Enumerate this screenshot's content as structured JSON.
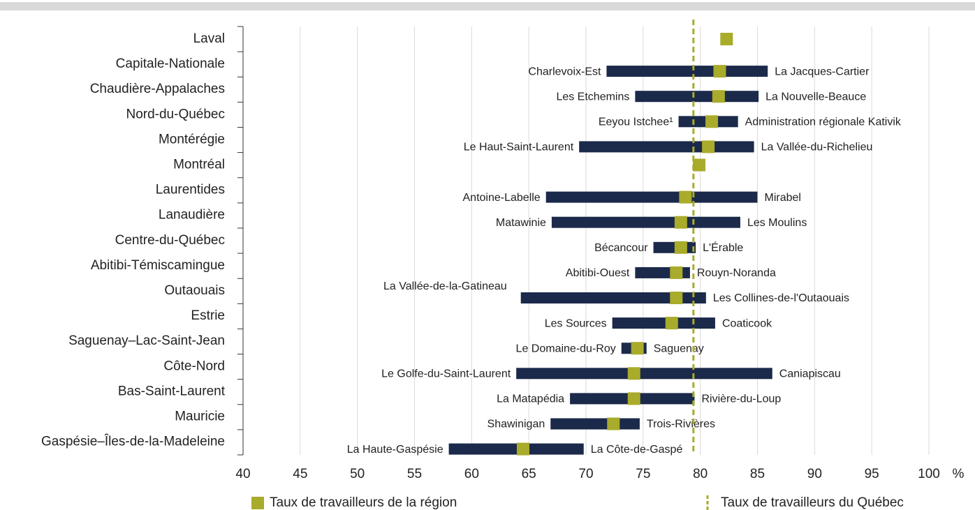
{
  "chart_data": {
    "type": "range",
    "categories": [
      "Laval",
      "Capitale-Nationale",
      "Chaudière-Appalaches",
      "Nord-du-Québec",
      "Montérégie",
      "Montréal",
      "Laurentides",
      "Lanaudière",
      "Centre-du-Québec",
      "Abitibi-Témiscamingue",
      "Outaouais",
      "Estrie",
      "Saguenay–Lac-Saint-Jean",
      "Côte-Nord",
      "Bas-Saint-Laurent",
      "Mauricie",
      "Gaspésie–Îles-de-la-Madeleine"
    ],
    "series": [
      {
        "name": "Taux de travailleurs de la région",
        "color": "#a9ab2b",
        "values": [
          82.3,
          81.7,
          81.6,
          81.0,
          80.7,
          79.9,
          78.7,
          78.3,
          78.3,
          77.9,
          77.9,
          77.5,
          74.5,
          74.2,
          74.2,
          72.4,
          64.5
        ]
      }
    ],
    "range_color": "#1b2a4a",
    "min_values": [
      null,
      71.8,
      74.3,
      78.1,
      69.4,
      null,
      66.5,
      67.0,
      75.9,
      74.3,
      64.3,
      72.3,
      73.1,
      63.9,
      68.6,
      66.9,
      58.0
    ],
    "max_values": [
      null,
      85.9,
      85.1,
      83.3,
      84.7,
      null,
      85.0,
      83.5,
      79.6,
      79.1,
      80.5,
      81.3,
      75.3,
      86.3,
      79.5,
      74.7,
      69.8
    ],
    "min_labels": [
      null,
      "Charlevoix-Est",
      "Les Etchemins",
      "Eeyou Istchee¹",
      "Le Haut-Saint-Laurent",
      null,
      "Antoine-Labelle",
      "Matawinie",
      "Bécancour",
      "Abitibi-Ouest",
      "La Vallée-de-la-Gatineau",
      "Les Sources",
      "Le Domaine-du-Roy",
      "Le Golfe-du-Saint-Laurent",
      "La Matapédia",
      "Shawinigan",
      "La Haute-Gaspésie"
    ],
    "max_labels": [
      null,
      "La Jacques-Cartier",
      "La Nouvelle-Beauce",
      "Administration régionale Kativik",
      "La Vallée-du-Richelieu",
      null,
      "Mirabel",
      "Les Moulins",
      "L'Érable",
      "Rouyn-Noranda",
      "Les Collines-de-l'Outaouais",
      "Coaticook",
      "Saguenay",
      "Caniapiscau",
      "Rivière-du-Loup",
      "Trois-Rivières",
      "La Côte-de-Gaspé"
    ],
    "reference": {
      "name": "Taux de travailleurs du Québec",
      "value": 79.4,
      "color": "#a9ab2b"
    },
    "xlim": [
      40,
      100
    ],
    "xticks": [
      40,
      45,
      50,
      55,
      60,
      65,
      70,
      75,
      80,
      85,
      90,
      95,
      100
    ],
    "x_unit": "%",
    "grid": true
  }
}
